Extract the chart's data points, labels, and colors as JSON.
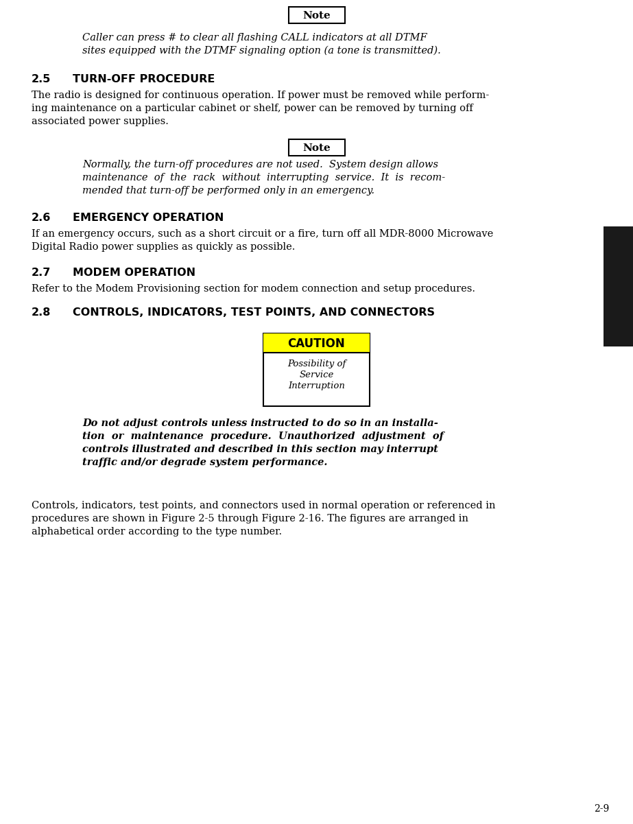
{
  "bg_color": "#ffffff",
  "text_color": "#000000",
  "page_number": "2-9",
  "sidebar_color": "#1a1a1a",
  "note1_label": "Note",
  "note1_italic_line1": "Caller can press # to clear all flashing CALL indicators at all DTMF",
  "note1_italic_line2": "sites equipped with the DTMF signaling option (a tone is transmitted).",
  "sec25_heading_num": "2.5",
  "sec25_heading_txt": "TURN-OFF PROCEDURE",
  "sec25_body_line1": "The radio is designed for continuous operation. If power must be removed while perform-",
  "sec25_body_line2": "ing maintenance on a particular cabinet or shelf, power can be removed by turning off",
  "sec25_body_line3": "associated power supplies.",
  "note2_label": "Note",
  "note2_italic_line1": "Normally, the turn-off procedures are not used.  System design allows",
  "note2_italic_line2": "maintenance  of  the  rack  without  interrupting  service.  It  is  recom-",
  "note2_italic_line3": "mended that turn-off be performed only in an emergency.",
  "sec26_heading_num": "2.6",
  "sec26_heading_txt": "EMERGENCY OPERATION",
  "sec26_body_line1": "If an emergency occurs, such as a short circuit or a fire, turn off all MDR-8000 Microwave",
  "sec26_body_line2": "Digital Radio power supplies as quickly as possible.",
  "sec27_heading_num": "2.7",
  "sec27_heading_txt": "MODEM OPERATION",
  "sec27_body": "Refer to the Modem Provisioning section for modem connection and setup procedures.",
  "sec28_heading_num": "2.8",
  "sec28_heading_txt": "CONTROLS, INDICATORS, TEST POINTS, AND CONNECTORS",
  "caution_label": "CAUTION",
  "caution_bg": "#ffff00",
  "caution_line1": "Possibility of",
  "caution_line2": "Service",
  "caution_line3": "Interruption",
  "caution_body_line1": "Do not adjust controls unless instructed to do so in an installa-",
  "caution_body_line2": "tion  or  maintenance  procedure.  Unauthorized  adjustment  of",
  "caution_body_line3": "controls illustrated and described in this section may interrupt",
  "caution_body_line4": "traffic and/or degrade system performance.",
  "final_body_line1": "Controls, indicators, test points, and connectors used in normal operation or referenced in",
  "final_body_line2": "procedures are shown in Figure 2-5 through Figure 2-16. The figures are arranged in",
  "final_body_line3": "alphabetical order according to the type number."
}
